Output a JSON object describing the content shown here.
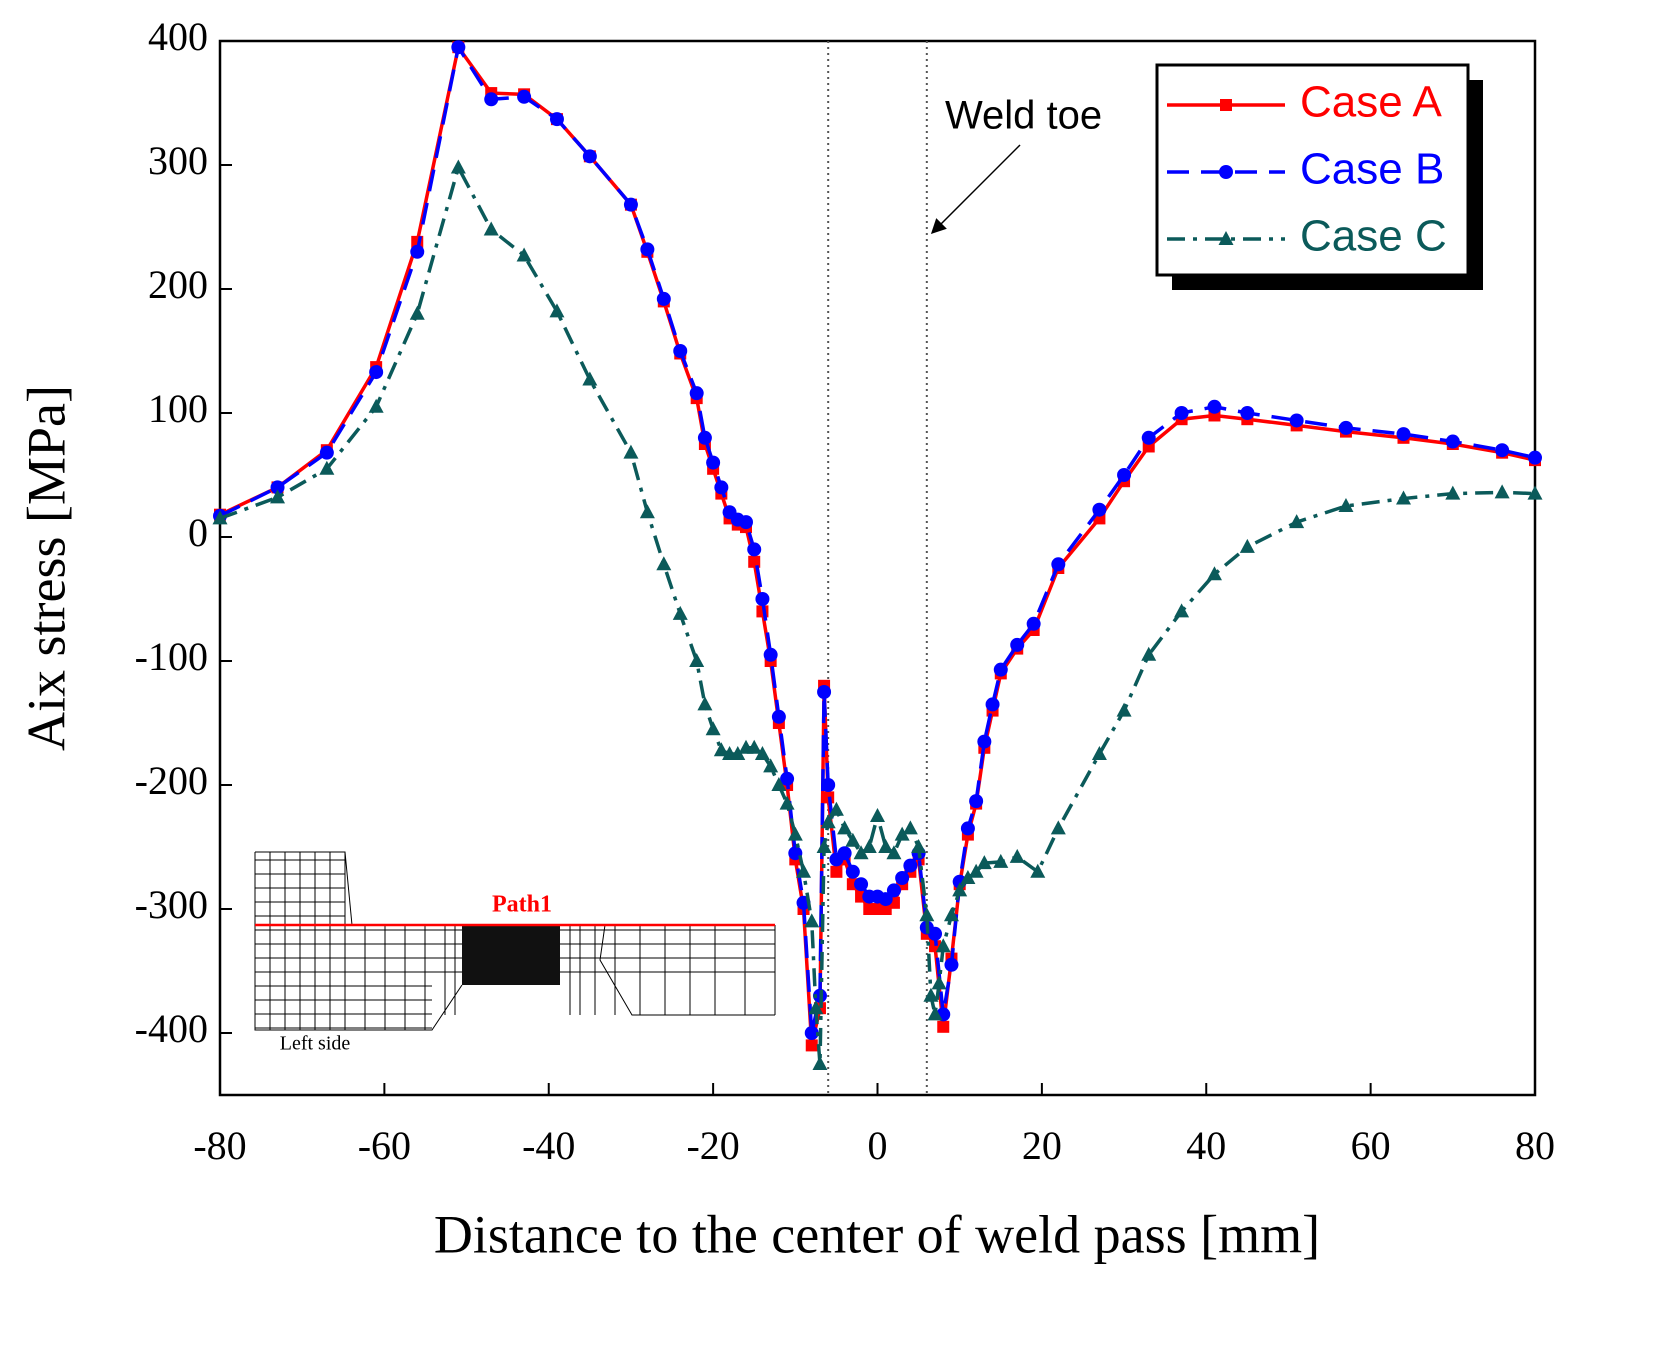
{
  "chart_data": {
    "type": "line",
    "xlabel": "Distance to the center of weld pass [mm]",
    "ylabel": "Aix stress [MPa]",
    "xlim": [
      -80,
      80
    ],
    "xticks": [
      -80,
      -60,
      -40,
      -20,
      0,
      20,
      40,
      60,
      80
    ],
    "ylim": [
      -450,
      400
    ],
    "yticks": [
      -400,
      -300,
      -200,
      -100,
      0,
      100,
      200,
      300,
      400
    ],
    "legend": "upper right",
    "annotation": "Weld toe",
    "weld_toe_lines": [
      -6,
      6
    ],
    "inset_labels": [
      "Path1",
      "Left side"
    ],
    "series": [
      {
        "name": "Case A",
        "color": "#ff0000",
        "marker": "square",
        "line_style": "solid",
        "x": [
          -80,
          -73,
          -67,
          -61,
          -56,
          -51,
          -47,
          -43,
          -39,
          -35,
          -30,
          -28,
          -26,
          -24,
          -22,
          -21,
          -20,
          -19,
          -18,
          -17,
          -16,
          -15,
          -14,
          -13,
          -12,
          -11,
          -10,
          -9,
          -8,
          -7,
          -6.5,
          -6,
          -5,
          -4,
          -3,
          -2,
          -1,
          0,
          1,
          2,
          3,
          4,
          5,
          6,
          7,
          8,
          9,
          10,
          11,
          12,
          13,
          14,
          15,
          17,
          19,
          22,
          27,
          30,
          33,
          37,
          41,
          45,
          51,
          57,
          64,
          70,
          76,
          80
        ],
        "values": [
          18,
          40,
          70,
          137,
          238,
          395,
          358,
          357,
          337,
          307,
          268,
          230,
          190,
          148,
          112,
          75,
          55,
          35,
          15,
          10,
          8,
          -20,
          -60,
          -100,
          -150,
          -200,
          -260,
          -300,
          -410,
          -380,
          -120,
          -210,
          -270,
          -260,
          -280,
          -290,
          -300,
          -300,
          -300,
          -295,
          -280,
          -270,
          -260,
          -320,
          -330,
          -395,
          -340,
          -280,
          -240,
          -215,
          -170,
          -140,
          -110,
          -90,
          -75,
          -25,
          15,
          45,
          73,
          95,
          98,
          95,
          90,
          85,
          80,
          75,
          68,
          62
        ]
      },
      {
        "name": "Case B",
        "color": "#0000ff",
        "marker": "circle",
        "line_style": "dashed",
        "x": [
          -80,
          -73,
          -67,
          -61,
          -56,
          -51,
          -47,
          -43,
          -39,
          -35,
          -30,
          -28,
          -26,
          -24,
          -22,
          -21,
          -20,
          -19,
          -18,
          -17,
          -16,
          -15,
          -14,
          -13,
          -12,
          -11,
          -10,
          -9,
          -8,
          -7,
          -6.5,
          -6,
          -5,
          -4,
          -3,
          -2,
          -1,
          0,
          1,
          2,
          3,
          4,
          5,
          6,
          7,
          8,
          9,
          10,
          11,
          12,
          13,
          14,
          15,
          17,
          19,
          22,
          27,
          30,
          33,
          37,
          41,
          45,
          51,
          57,
          64,
          70,
          76,
          80
        ],
        "values": [
          17,
          40,
          68,
          133,
          230,
          395,
          353,
          355,
          337,
          307,
          268,
          232,
          192,
          150,
          116,
          80,
          60,
          40,
          20,
          14,
          12,
          -10,
          -50,
          -95,
          -145,
          -195,
          -255,
          -295,
          -400,
          -370,
          -125,
          -200,
          -260,
          -255,
          -270,
          -280,
          -290,
          -290,
          -292,
          -285,
          -275,
          -265,
          -255,
          -315,
          -320,
          -385,
          -345,
          -278,
          -235,
          -213,
          -165,
          -135,
          -107,
          -87,
          -70,
          -22,
          22,
          50,
          80,
          100,
          105,
          100,
          94,
          88,
          83,
          77,
          70,
          64
        ]
      },
      {
        "name": "Case C",
        "color": "#0b5a5a",
        "marker": "triangle",
        "line_style": "dashdot",
        "x": [
          -80,
          -73,
          -67,
          -61,
          -56,
          -51,
          -47,
          -43,
          -39,
          -35,
          -30,
          -28,
          -26,
          -24,
          -22,
          -21,
          -20,
          -19,
          -18,
          -17,
          -16,
          -15,
          -14,
          -13,
          -12,
          -11,
          -10,
          -9,
          -8,
          -7.5,
          -7,
          -6.5,
          -6,
          -5,
          -4,
          -3,
          -2,
          -1,
          0,
          1,
          2,
          3,
          4,
          5,
          6,
          6.5,
          7,
          7.5,
          8,
          9,
          10,
          11,
          12,
          13,
          15,
          17,
          19.5,
          22,
          27,
          30,
          33,
          37,
          41,
          45,
          51,
          57,
          64,
          70,
          76,
          80
        ],
        "values": [
          15,
          32,
          55,
          105,
          180,
          298,
          248,
          227,
          182,
          127,
          68,
          20,
          -22,
          -62,
          -100,
          -135,
          -155,
          -172,
          -175,
          -175,
          -170,
          -170,
          -175,
          -185,
          -200,
          -215,
          -240,
          -270,
          -310,
          -380,
          -425,
          -250,
          -230,
          -220,
          -235,
          -245,
          -255,
          -250,
          -225,
          -250,
          -255,
          -240,
          -235,
          -250,
          -305,
          -370,
          -385,
          -360,
          -330,
          -305,
          -285,
          -275,
          -270,
          -263,
          -262,
          -258,
          -270,
          -235,
          -175,
          -140,
          -95,
          -60,
          -30,
          -8,
          12,
          25,
          31,
          35,
          36,
          35
        ]
      }
    ]
  }
}
